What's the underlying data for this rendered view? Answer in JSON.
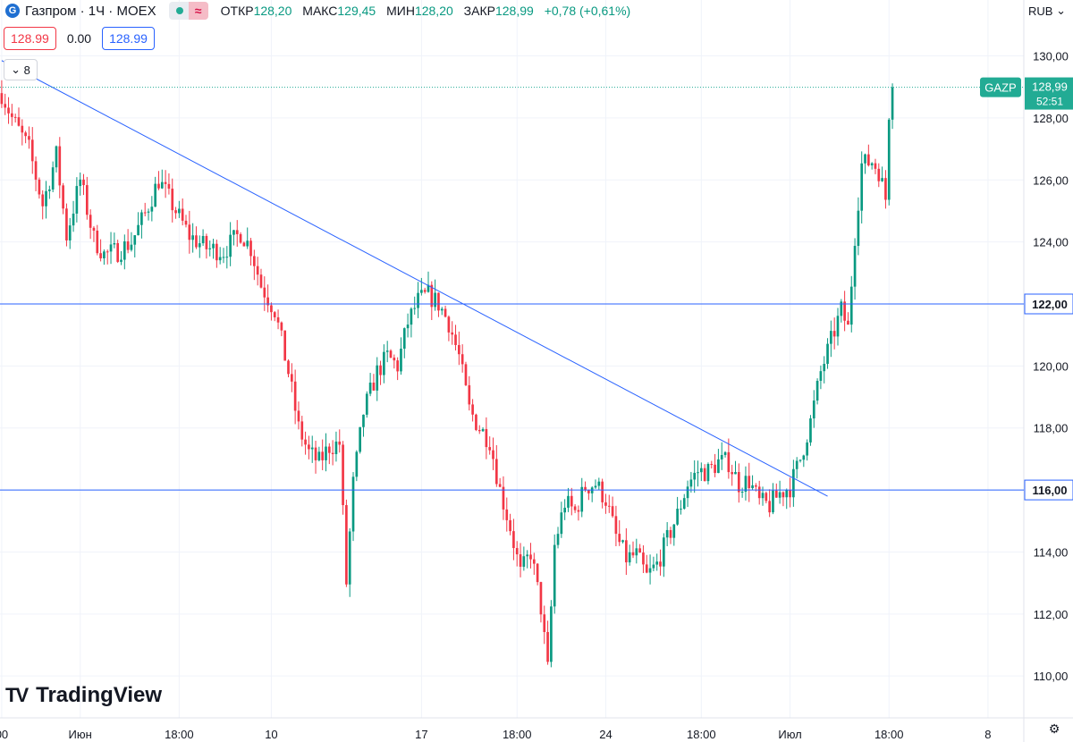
{
  "header": {
    "title": "Газпром · 1Ч · MOEX",
    "logo_letter": "G",
    "eq_symbol": "≈",
    "open_label": "ОТКР",
    "open_value": "128,20",
    "high_label": "МАКС",
    "high_value": "129,45",
    "low_label": "МИН",
    "low_value": "128,20",
    "close_label": "ЗАКР",
    "close_value": "128,99",
    "change": "+0,78 (+0,61%)"
  },
  "trade": {
    "sell": "128.99",
    "spread": "0.00",
    "buy": "128.99"
  },
  "collapse_count": "8",
  "currency": "RUB",
  "currency_icon": "chevron-down-icon",
  "settings_icon": "gear-icon",
  "brand": "TradingView",
  "colors": {
    "up": "#089981",
    "down": "#f23645",
    "line": "#2962ff",
    "grid": "#f0f3fa",
    "badge": "#22ab94"
  },
  "chart_data": {
    "type": "candlestick",
    "symbol": "GAZP",
    "timeframe": "1Ч",
    "y_axis": {
      "min": 108.65,
      "max": 130.65,
      "ticks": [
        "110,00",
        "112,00",
        "114,00",
        "116,00",
        "118,00",
        "120,00",
        "122,00",
        "124,00",
        "126,00",
        "128,00",
        "130,00"
      ]
    },
    "x_axis": {
      "bar_count": 300,
      "ticks": [
        {
          "bar": 0,
          "label": "00"
        },
        {
          "bar": 23,
          "label": "Июн"
        },
        {
          "bar": 52,
          "label": "18:00"
        },
        {
          "bar": 79,
          "label": "10"
        },
        {
          "bar": 123,
          "label": "17"
        },
        {
          "bar": 151,
          "label": "18:00"
        },
        {
          "bar": 177,
          "label": "24"
        },
        {
          "bar": 205,
          "label": "18:00"
        },
        {
          "bar": 231,
          "label": "Июл"
        },
        {
          "bar": 260,
          "label": "18:00"
        },
        {
          "bar": 289,
          "label": "8"
        }
      ]
    },
    "last_price": {
      "label": "GAZP",
      "value": "128,99",
      "countdown": "52:51"
    },
    "horizontal_lines": [
      {
        "price": 122.0,
        "label": "122,00"
      },
      {
        "price": 116.0,
        "label": "116,00"
      }
    ],
    "trend_line": {
      "from": {
        "bar": 0,
        "price": 129.85
      },
      "to": {
        "bar": 242,
        "price": 115.8
      }
    },
    "path_anchors": [
      [
        0,
        128.8
      ],
      [
        3,
        128.0
      ],
      [
        8,
        127.0
      ],
      [
        12,
        125.2
      ],
      [
        16,
        126.8
      ],
      [
        19,
        124.2
      ],
      [
        23,
        126.0
      ],
      [
        27,
        124.1
      ],
      [
        30,
        123.6
      ],
      [
        34,
        123.7
      ],
      [
        38,
        124.0
      ],
      [
        42,
        124.9
      ],
      [
        46,
        126.0
      ],
      [
        50,
        125.2
      ],
      [
        55,
        124.2
      ],
      [
        60,
        123.8
      ],
      [
        65,
        123.7
      ],
      [
        70,
        124.3
      ],
      [
        73,
        123.8
      ],
      [
        76,
        122.6
      ],
      [
        80,
        121.8
      ],
      [
        84,
        119.8
      ],
      [
        87,
        118.0
      ],
      [
        90,
        117.2
      ],
      [
        93,
        116.9
      ],
      [
        96,
        117.4
      ],
      [
        99,
        117.5
      ],
      [
        101,
        113.0
      ],
      [
        103,
        116.2
      ],
      [
        106,
        118.5
      ],
      [
        110,
        119.8
      ],
      [
        113,
        120.3
      ],
      [
        116,
        120.0
      ],
      [
        119,
        121.4
      ],
      [
        122,
        122.1
      ],
      [
        125,
        122.3
      ],
      [
        128,
        122.0
      ],
      [
        131,
        121.4
      ],
      [
        134,
        120.3
      ],
      [
        137,
        118.6
      ],
      [
        140,
        118.0
      ],
      [
        143,
        117.6
      ],
      [
        146,
        116.0
      ],
      [
        149,
        114.8
      ],
      [
        152,
        113.3
      ],
      [
        155,
        114.0
      ],
      [
        158,
        112.2
      ],
      [
        160,
        110.2
      ],
      [
        162,
        114.2
      ],
      [
        165,
        115.6
      ],
      [
        168,
        115.3
      ],
      [
        171,
        116.1
      ],
      [
        174,
        116.2
      ],
      [
        177,
        115.7
      ],
      [
        180,
        114.5
      ],
      [
        183,
        113.8
      ],
      [
        186,
        113.9
      ],
      [
        189,
        113.2
      ],
      [
        192,
        113.6
      ],
      [
        195,
        114.4
      ],
      [
        198,
        115.2
      ],
      [
        201,
        116.2
      ],
      [
        204,
        116.6
      ],
      [
        207,
        116.6
      ],
      [
        210,
        116.9
      ],
      [
        213,
        116.9
      ],
      [
        216,
        116.2
      ],
      [
        219,
        116.3
      ],
      [
        222,
        115.6
      ],
      [
        225,
        115.5
      ],
      [
        228,
        115.9
      ],
      [
        231,
        116.1
      ],
      [
        234,
        117.0
      ],
      [
        237,
        118.2
      ],
      [
        240,
        119.8
      ],
      [
        243,
        120.8
      ],
      [
        246,
        121.8
      ],
      [
        248,
        121.2
      ],
      [
        250,
        124.2
      ],
      [
        252,
        126.5
      ],
      [
        255,
        126.6
      ],
      [
        257,
        126.3
      ],
      [
        259,
        125.4
      ],
      [
        260,
        128.2
      ],
      [
        261,
        128.99
      ]
    ]
  }
}
